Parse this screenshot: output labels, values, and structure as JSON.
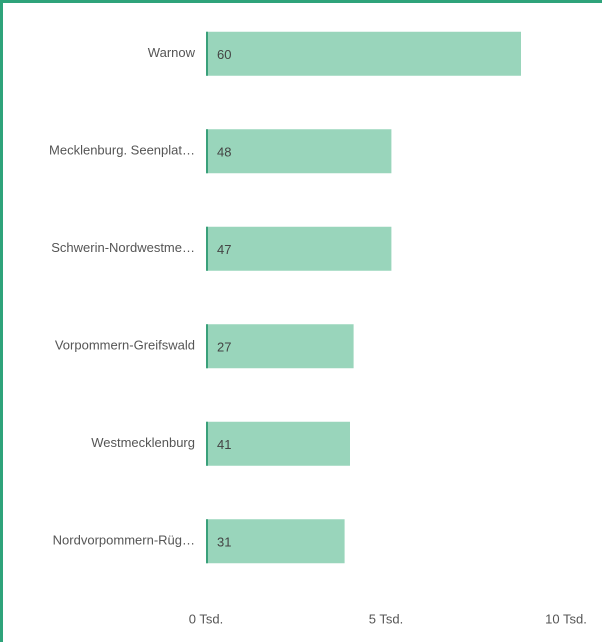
{
  "chart_data": {
    "type": "barh",
    "categories": [
      "Warnow",
      "Mecklenburg. Seenplat…",
      "Schwerin-Nordwestme…",
      "Vorpommern-Greifswald",
      "Westmecklenburg",
      "Nordvorpommern-Rüg…"
    ],
    "values": [
      8.75,
      5.15,
      5.15,
      4.1,
      4.0,
      3.85
    ],
    "data_labels": [
      60,
      48,
      47,
      27,
      41,
      31
    ],
    "color": "#99d5bb",
    "xlim": [
      0,
      10
    ],
    "xticks": [
      {
        "value": 0,
        "label": "0 Tsd."
      },
      {
        "value": 5,
        "label": "5 Tsd."
      },
      {
        "value": 10,
        "label": "10 Tsd."
      }
    ],
    "grid": false
  }
}
